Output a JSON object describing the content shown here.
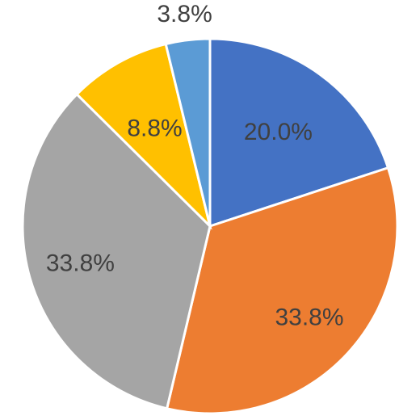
{
  "chart_data": {
    "type": "pie",
    "start_angle_deg": 0,
    "direction": "clockwise",
    "slices": [
      {
        "value": 20.0,
        "label": "20.0%",
        "color": "#4472C4"
      },
      {
        "value": 33.8,
        "label": "33.8%",
        "color": "#ED7D31"
      },
      {
        "value": 33.8,
        "label": "33.8%",
        "color": "#A5A5A5"
      },
      {
        "value": 8.8,
        "label": "8.8%",
        "color": "#FFC000"
      },
      {
        "value": 3.8,
        "label": "3.8%",
        "color": "#5B9BD5"
      }
    ]
  }
}
